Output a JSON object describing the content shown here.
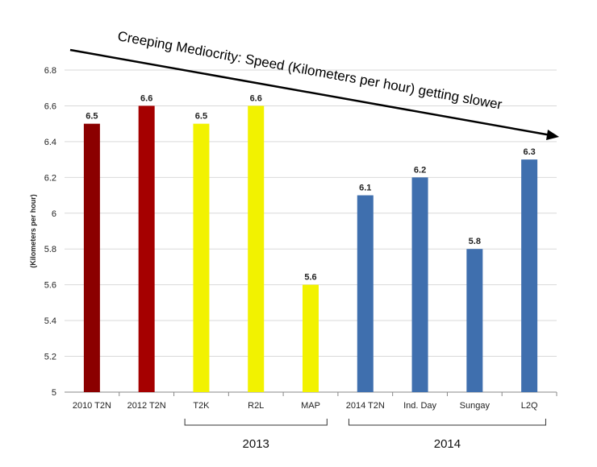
{
  "chart_data": {
    "type": "bar",
    "title": "Creeping Mediocrity: Speed (Kilometers per hour) getting slower",
    "ylabel": "(Kilometers per hour)",
    "xlabel": "",
    "ylim": [
      5,
      6.8
    ],
    "yticks": [
      "5",
      "5.2",
      "5.4",
      "5.6",
      "5.8",
      "6",
      "6.2",
      "6.4",
      "6.6",
      "6.8"
    ],
    "grid": true,
    "categories": [
      "2010 T2N",
      "2012 T2N",
      "T2K",
      "R2L",
      "MAP",
      "2014 T2N",
      "Ind. Day",
      "Sungay",
      "L2Q"
    ],
    "values": [
      6.5,
      6.6,
      6.5,
      6.6,
      5.6,
      6.1,
      6.2,
      5.8,
      6.3
    ],
    "value_labels": [
      "6.5",
      "6.6",
      "6.5",
      "6.6",
      "5.6",
      "6.1",
      "6.2",
      "5.8",
      "6.3"
    ],
    "bar_colors": [
      "#8b0000",
      "#a50000",
      "#f2f200",
      "#f2f200",
      "#f2f200",
      "#3f6fae",
      "#3f6fae",
      "#3f6fae",
      "#3f6fae"
    ],
    "groups": [
      {
        "label": "2013",
        "from": 2,
        "to": 4
      },
      {
        "label": "2014",
        "from": 5,
        "to": 8
      }
    ]
  }
}
